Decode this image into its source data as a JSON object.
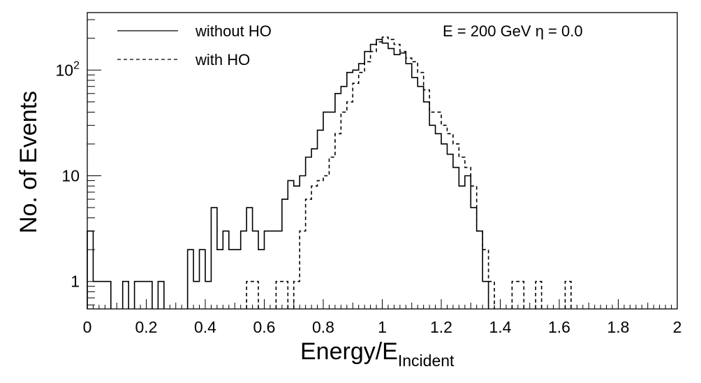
{
  "chart_data": {
    "type": "histogram",
    "title": "",
    "annotation": "E = 200 GeV  η = 0.0",
    "xlabel": "Energy/E",
    "xlabel_sub": "Incident",
    "ylabel": "No. of Events",
    "xlim": [
      0,
      2
    ],
    "ylim": [
      0.55,
      350
    ],
    "yscale": "log",
    "bin_width": 0.02,
    "x_ticks": [
      0,
      0.2,
      0.4,
      0.6,
      0.8,
      1,
      1.2,
      1.4,
      1.6,
      1.8,
      2
    ],
    "x_tick_labels": [
      "0",
      "0.2",
      "0.4",
      "0.6",
      "0.8",
      "1",
      "1.2",
      "1.4",
      "1.6",
      "1.8",
      "2"
    ],
    "y_tick_labels": [
      {
        "value": 1,
        "label": "1"
      },
      {
        "value": 10,
        "label": "10"
      },
      {
        "value": 100,
        "label": "10",
        "sup": "2"
      }
    ],
    "grid": false,
    "legend_position": "top-left",
    "series": [
      {
        "name": "without HO",
        "style": "solid",
        "color": "#000000",
        "bins": [
          [
            0.0,
            3
          ],
          [
            0.02,
            1
          ],
          [
            0.04,
            1
          ],
          [
            0.06,
            1
          ],
          [
            0.12,
            1
          ],
          [
            0.16,
            1
          ],
          [
            0.18,
            1
          ],
          [
            0.2,
            1
          ],
          [
            0.24,
            1
          ],
          [
            0.34,
            2
          ],
          [
            0.36,
            1
          ],
          [
            0.38,
            2
          ],
          [
            0.4,
            1
          ],
          [
            0.42,
            5
          ],
          [
            0.44,
            2
          ],
          [
            0.46,
            3
          ],
          [
            0.48,
            2
          ],
          [
            0.5,
            2
          ],
          [
            0.52,
            3
          ],
          [
            0.54,
            5
          ],
          [
            0.56,
            3
          ],
          [
            0.58,
            2
          ],
          [
            0.6,
            3
          ],
          [
            0.62,
            3
          ],
          [
            0.64,
            3
          ],
          [
            0.66,
            6
          ],
          [
            0.68,
            9
          ],
          [
            0.7,
            8
          ],
          [
            0.72,
            10
          ],
          [
            0.74,
            15
          ],
          [
            0.76,
            18
          ],
          [
            0.78,
            27
          ],
          [
            0.8,
            40
          ],
          [
            0.82,
            40
          ],
          [
            0.84,
            60
          ],
          [
            0.86,
            70
          ],
          [
            0.88,
            95
          ],
          [
            0.9,
            100
          ],
          [
            0.92,
            115
          ],
          [
            0.94,
            150
          ],
          [
            0.96,
            175
          ],
          [
            0.98,
            195
          ],
          [
            1.0,
            180
          ],
          [
            1.02,
            160
          ],
          [
            1.04,
            140
          ],
          [
            1.06,
            145
          ],
          [
            1.08,
            115
          ],
          [
            1.1,
            85
          ],
          [
            1.12,
            70
          ],
          [
            1.14,
            50
          ],
          [
            1.16,
            30
          ],
          [
            1.18,
            25
          ],
          [
            1.2,
            20
          ],
          [
            1.22,
            16
          ],
          [
            1.24,
            12
          ],
          [
            1.26,
            8
          ],
          [
            1.28,
            10
          ],
          [
            1.3,
            5
          ],
          [
            1.32,
            3
          ],
          [
            1.34,
            1
          ]
        ]
      },
      {
        "name": "with HO",
        "style": "dashed",
        "color": "#000000",
        "bins": [
          [
            0.54,
            1
          ],
          [
            0.56,
            1
          ],
          [
            0.64,
            1
          ],
          [
            0.66,
            1
          ],
          [
            0.7,
            1
          ],
          [
            0.72,
            3
          ],
          [
            0.74,
            6
          ],
          [
            0.76,
            8
          ],
          [
            0.78,
            9
          ],
          [
            0.8,
            10
          ],
          [
            0.82,
            15
          ],
          [
            0.84,
            25
          ],
          [
            0.86,
            40
          ],
          [
            0.88,
            50
          ],
          [
            0.9,
            75
          ],
          [
            0.92,
            95
          ],
          [
            0.94,
            120
          ],
          [
            0.96,
            150
          ],
          [
            0.98,
            185
          ],
          [
            1.0,
            205
          ],
          [
            1.02,
            195
          ],
          [
            1.04,
            175
          ],
          [
            1.06,
            150
          ],
          [
            1.08,
            130
          ],
          [
            1.1,
            120
          ],
          [
            1.12,
            95
          ],
          [
            1.14,
            65
          ],
          [
            1.16,
            40
          ],
          [
            1.18,
            40
          ],
          [
            1.2,
            30
          ],
          [
            1.22,
            25
          ],
          [
            1.24,
            20
          ],
          [
            1.26,
            15
          ],
          [
            1.28,
            12
          ],
          [
            1.3,
            8
          ],
          [
            1.32,
            3
          ],
          [
            1.34,
            2
          ],
          [
            1.36,
            1
          ],
          [
            1.44,
            1
          ],
          [
            1.46,
            1
          ],
          [
            1.52,
            1
          ],
          [
            1.62,
            1
          ]
        ]
      }
    ]
  }
}
